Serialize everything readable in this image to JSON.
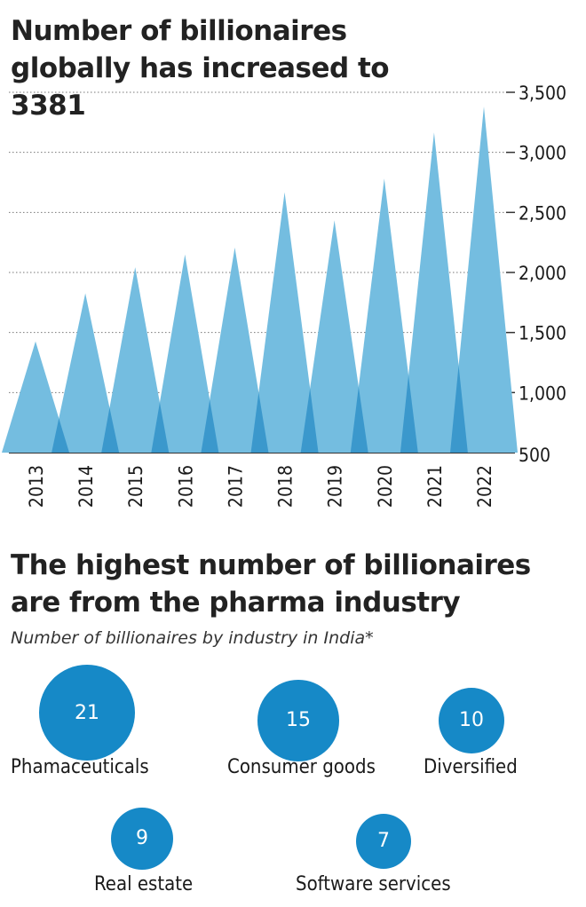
{
  "chart1": {
    "title": "Number of billionaires globally has increased to 3381"
  },
  "chart2": {
    "title": "The highest number of billionaires are from the pharma industry",
    "subtitle": "Number of billionaires by industry in India*"
  },
  "colors": {
    "triangle": "#74bde0",
    "overlap": "#3b98cc",
    "bubble": "#1689c7",
    "grid": "#777777"
  },
  "chart_data": [
    {
      "type": "area",
      "title": "Number of billionaires globally has increased to 3381",
      "x": [
        "2013",
        "2014",
        "2015",
        "2016",
        "2017",
        "2018",
        "2019",
        "2020",
        "2021",
        "2022"
      ],
      "values": [
        1426,
        1826,
        2043,
        2150,
        2208,
        2668,
        2434,
        2781,
        3166,
        3381
      ],
      "yticks": [
        "3,500",
        "3,000",
        "2,500",
        "2,000",
        "1,500",
        "1,000",
        "500"
      ],
      "ylim": [
        500,
        3500
      ],
      "grid": true,
      "y_axis_side": "right"
    },
    {
      "type": "bubble",
      "title": "The highest number of billionaires are from the pharma industry",
      "subtitle": "Number of billionaires by industry in India*",
      "categories": [
        "Phamaceuticals",
        "Consumer goods",
        "Diversified",
        "Real estate",
        "Software services"
      ],
      "values": [
        21,
        15,
        10,
        9,
        7
      ]
    }
  ]
}
